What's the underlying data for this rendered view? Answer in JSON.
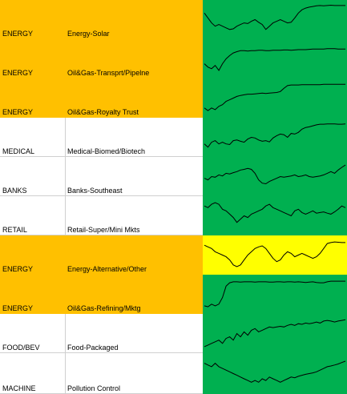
{
  "colors": {
    "energy_bg": "#ffc000",
    "default_bg": "#ffffff",
    "spark_green": "#00b050",
    "spark_yellow": "#ffff00",
    "line": "#000000"
  },
  "rows": [
    {
      "sector": "ENERGY",
      "industry": "Energy-Solar",
      "highlight": true,
      "spark_color": "green",
      "spark": [
        0.7,
        0.55,
        0.4,
        0.3,
        0.35,
        0.3,
        0.25,
        0.2,
        0.22,
        0.3,
        0.35,
        0.4,
        0.38,
        0.45,
        0.5,
        0.42,
        0.35,
        0.2,
        0.3,
        0.4,
        0.45,
        0.5,
        0.45,
        0.4,
        0.42,
        0.55,
        0.7,
        0.8,
        0.85,
        0.88,
        0.9,
        0.92,
        0.93,
        0.92,
        0.93,
        0.94,
        0.93,
        0.93,
        0.93,
        0.93
      ]
    },
    {
      "sector": "ENERGY",
      "industry": "Oil&Gas-Transprt/Pipelne",
      "highlight": true,
      "spark_color": "green",
      "spark": [
        0.35,
        0.25,
        0.2,
        0.3,
        0.15,
        0.35,
        0.5,
        0.6,
        0.68,
        0.72,
        0.75,
        0.75,
        0.74,
        0.75,
        0.75,
        0.76,
        0.76,
        0.75,
        0.75,
        0.76,
        0.76,
        0.76,
        0.77,
        0.77,
        0.76,
        0.77,
        0.78,
        0.78,
        0.78,
        0.79,
        0.8,
        0.8,
        0.8,
        0.8,
        0.81,
        0.81,
        0.81,
        0.8,
        0.8,
        0.8
      ]
    },
    {
      "sector": "ENERGY",
      "industry": "Oil&Gas-Royalty Trust",
      "highlight": true,
      "spark_color": "green",
      "spark": [
        0.2,
        0.12,
        0.2,
        0.15,
        0.25,
        0.3,
        0.4,
        0.45,
        0.5,
        0.55,
        0.58,
        0.6,
        0.62,
        0.62,
        0.63,
        0.64,
        0.65,
        0.64,
        0.65,
        0.66,
        0.67,
        0.7,
        0.8,
        0.88,
        0.9,
        0.9,
        0.9,
        0.91,
        0.91,
        0.91,
        0.91,
        0.91,
        0.91,
        0.92,
        0.92,
        0.92,
        0.92,
        0.92,
        0.92,
        0.92
      ]
    },
    {
      "sector": "MEDICAL",
      "industry": "Medical-Biomed/Biotech",
      "highlight": false,
      "spark_color": "green",
      "spark": [
        0.3,
        0.2,
        0.35,
        0.4,
        0.3,
        0.35,
        0.3,
        0.28,
        0.4,
        0.42,
        0.38,
        0.35,
        0.45,
        0.5,
        0.48,
        0.42,
        0.38,
        0.4,
        0.36,
        0.48,
        0.55,
        0.6,
        0.58,
        0.5,
        0.62,
        0.6,
        0.65,
        0.75,
        0.8,
        0.82,
        0.85,
        0.88,
        0.9,
        0.9,
        0.91,
        0.91,
        0.91,
        0.9,
        0.9,
        0.91
      ]
    },
    {
      "sector": "BANKS",
      "industry": "Banks-Southeast",
      "highlight": false,
      "spark_color": "green",
      "spark": [
        0.45,
        0.4,
        0.5,
        0.48,
        0.55,
        0.52,
        0.6,
        0.58,
        0.62,
        0.65,
        0.7,
        0.72,
        0.75,
        0.72,
        0.6,
        0.4,
        0.3,
        0.28,
        0.35,
        0.4,
        0.45,
        0.5,
        0.48,
        0.5,
        0.52,
        0.55,
        0.5,
        0.52,
        0.55,
        0.5,
        0.48,
        0.5,
        0.52,
        0.55,
        0.6,
        0.65,
        0.6,
        0.7,
        0.78,
        0.85
      ]
    },
    {
      "sector": "RETAIL",
      "industry": "Retail-Super/Mini Mkts",
      "highlight": false,
      "spark_color": "green",
      "spark": [
        0.8,
        0.75,
        0.85,
        0.9,
        0.85,
        0.7,
        0.65,
        0.55,
        0.45,
        0.3,
        0.4,
        0.5,
        0.45,
        0.55,
        0.6,
        0.65,
        0.7,
        0.8,
        0.85,
        0.75,
        0.7,
        0.65,
        0.6,
        0.55,
        0.5,
        0.65,
        0.7,
        0.6,
        0.55,
        0.6,
        0.65,
        0.58,
        0.6,
        0.62,
        0.58,
        0.55,
        0.62,
        0.7,
        0.8,
        0.75
      ]
    },
    {
      "sector": "ENERGY",
      "industry": "Energy-Alternative/Other",
      "highlight": true,
      "spark_color": "yellow",
      "spark": [
        0.8,
        0.75,
        0.7,
        0.6,
        0.55,
        0.5,
        0.45,
        0.35,
        0.2,
        0.15,
        0.2,
        0.35,
        0.5,
        0.6,
        0.7,
        0.75,
        0.78,
        0.7,
        0.55,
        0.4,
        0.3,
        0.35,
        0.5,
        0.6,
        0.55,
        0.45,
        0.5,
        0.55,
        0.5,
        0.45,
        0.4,
        0.45,
        0.55,
        0.7,
        0.85,
        0.88,
        0.9,
        0.89,
        0.88,
        0.88
      ]
    },
    {
      "sector": "ENERGY",
      "industry": "Oil&Gas-Refining/Mktg",
      "highlight": true,
      "spark_color": "green",
      "spark": [
        0.15,
        0.12,
        0.2,
        0.15,
        0.2,
        0.4,
        0.75,
        0.85,
        0.88,
        0.88,
        0.87,
        0.88,
        0.88,
        0.88,
        0.87,
        0.88,
        0.88,
        0.88,
        0.87,
        0.87,
        0.88,
        0.88,
        0.87,
        0.88,
        0.88,
        0.87,
        0.88,
        0.87,
        0.86,
        0.87,
        0.88,
        0.86,
        0.85,
        0.85,
        0.88,
        0.9,
        0.9,
        0.9,
        0.9,
        0.9
      ]
    },
    {
      "sector": "FOOD/BEV",
      "industry": "Food-Packaged",
      "highlight": false,
      "spark_color": "green",
      "spark": [
        0.1,
        0.15,
        0.2,
        0.25,
        0.3,
        0.2,
        0.35,
        0.4,
        0.3,
        0.5,
        0.4,
        0.55,
        0.45,
        0.6,
        0.65,
        0.55,
        0.6,
        0.65,
        0.7,
        0.68,
        0.7,
        0.72,
        0.7,
        0.75,
        0.78,
        0.75,
        0.8,
        0.78,
        0.82,
        0.8,
        0.82,
        0.85,
        0.82,
        0.88,
        0.9,
        0.88,
        0.85,
        0.88,
        0.9,
        0.92
      ]
    },
    {
      "sector": "MACHINE",
      "industry": "Pollution Control",
      "highlight": false,
      "spark_color": "green",
      "spark": [
        0.8,
        0.75,
        0.7,
        0.8,
        0.7,
        0.65,
        0.6,
        0.55,
        0.5,
        0.45,
        0.4,
        0.35,
        0.3,
        0.25,
        0.3,
        0.25,
        0.35,
        0.3,
        0.4,
        0.35,
        0.3,
        0.25,
        0.3,
        0.35,
        0.4,
        0.38,
        0.42,
        0.45,
        0.48,
        0.5,
        0.52,
        0.55,
        0.6,
        0.65,
        0.7,
        0.72,
        0.75,
        0.78,
        0.82,
        0.86
      ]
    }
  ]
}
